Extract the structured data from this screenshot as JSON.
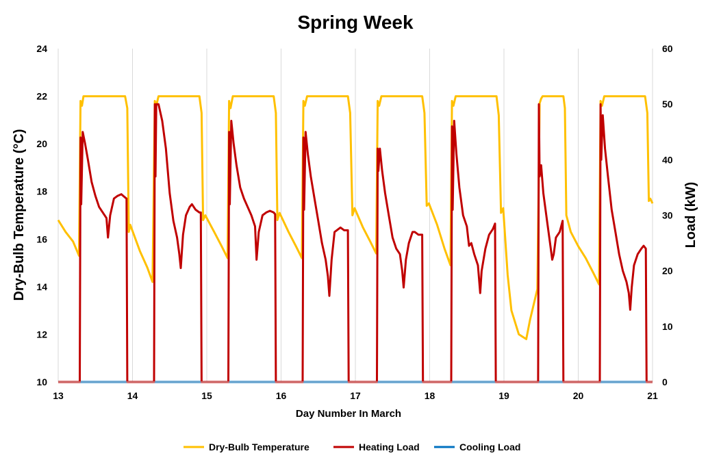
{
  "chart_data": {
    "type": "line",
    "title": "Spring Week",
    "xlabel": "Day Number In March",
    "ylabel_left": "Dry-Bulb Temperature (°C)",
    "ylabel_right": "Load (kW)",
    "xlim": [
      13,
      21
    ],
    "ylim_left": [
      10,
      24
    ],
    "ylim_right": [
      0,
      60
    ],
    "x_ticks": [
      13,
      14,
      15,
      16,
      17,
      18,
      19,
      20,
      21
    ],
    "y_left_ticks": [
      10,
      12,
      14,
      16,
      18,
      20,
      22,
      24
    ],
    "y_right_ticks": [
      0,
      10,
      20,
      30,
      40,
      50,
      60
    ],
    "grid": "vertical",
    "legend_position": "bottom",
    "series": [
      {
        "name": "Dry-Bulb Temperature",
        "axis": "left",
        "color": "#FFC000",
        "points": [
          [
            13.0,
            16.8
          ],
          [
            13.1,
            16.3
          ],
          [
            13.2,
            15.9
          ],
          [
            13.28,
            15.3
          ],
          [
            13.3,
            21.8
          ],
          [
            13.32,
            21.6
          ],
          [
            13.34,
            22.0
          ],
          [
            13.6,
            22.0
          ],
          [
            13.9,
            22.0
          ],
          [
            13.93,
            21.5
          ],
          [
            13.95,
            16.3
          ],
          [
            13.97,
            16.6
          ],
          [
            14.1,
            15.5
          ],
          [
            14.2,
            14.8
          ],
          [
            14.27,
            14.2
          ],
          [
            14.3,
            21.8
          ],
          [
            14.32,
            21.6
          ],
          [
            14.35,
            22.0
          ],
          [
            14.6,
            22.0
          ],
          [
            14.9,
            22.0
          ],
          [
            14.93,
            21.3
          ],
          [
            14.95,
            16.8
          ],
          [
            14.98,
            17.0
          ],
          [
            15.1,
            16.3
          ],
          [
            15.2,
            15.7
          ],
          [
            15.28,
            15.2
          ],
          [
            15.3,
            21.8
          ],
          [
            15.32,
            21.5
          ],
          [
            15.35,
            22.0
          ],
          [
            15.6,
            22.0
          ],
          [
            15.9,
            22.0
          ],
          [
            15.93,
            21.3
          ],
          [
            15.95,
            16.8
          ],
          [
            15.98,
            17.1
          ],
          [
            16.1,
            16.3
          ],
          [
            16.2,
            15.7
          ],
          [
            16.28,
            15.2
          ],
          [
            16.3,
            21.8
          ],
          [
            16.32,
            21.6
          ],
          [
            16.35,
            22.0
          ],
          [
            16.6,
            22.0
          ],
          [
            16.9,
            22.0
          ],
          [
            16.93,
            21.3
          ],
          [
            16.96,
            17.0
          ],
          [
            16.99,
            17.3
          ],
          [
            17.1,
            16.5
          ],
          [
            17.2,
            15.9
          ],
          [
            17.28,
            15.4
          ],
          [
            17.3,
            21.8
          ],
          [
            17.32,
            21.6
          ],
          [
            17.35,
            22.0
          ],
          [
            17.6,
            22.0
          ],
          [
            17.9,
            22.0
          ],
          [
            17.93,
            21.3
          ],
          [
            17.96,
            17.4
          ],
          [
            17.99,
            17.5
          ],
          [
            18.1,
            16.6
          ],
          [
            18.2,
            15.6
          ],
          [
            18.28,
            14.9
          ],
          [
            18.3,
            21.8
          ],
          [
            18.32,
            21.6
          ],
          [
            18.35,
            22.0
          ],
          [
            18.6,
            22.0
          ],
          [
            18.9,
            22.0
          ],
          [
            18.93,
            21.2
          ],
          [
            18.96,
            17.1
          ],
          [
            18.99,
            17.3
          ],
          [
            19.05,
            14.5
          ],
          [
            19.1,
            13.0
          ],
          [
            19.2,
            12.0
          ],
          [
            19.3,
            11.8
          ],
          [
            19.35,
            12.6
          ],
          [
            19.45,
            13.9
          ],
          [
            19.48,
            21.7
          ],
          [
            19.5,
            21.9
          ],
          [
            19.52,
            22.0
          ],
          [
            19.7,
            22.0
          ],
          [
            19.8,
            22.0
          ],
          [
            19.82,
            21.5
          ],
          [
            19.84,
            17.0
          ],
          [
            19.9,
            16.3
          ],
          [
            20.0,
            15.7
          ],
          [
            20.1,
            15.2
          ],
          [
            20.2,
            14.6
          ],
          [
            20.28,
            14.1
          ],
          [
            20.3,
            21.8
          ],
          [
            20.32,
            21.6
          ],
          [
            20.35,
            22.0
          ],
          [
            20.6,
            22.0
          ],
          [
            20.9,
            22.0
          ],
          [
            20.93,
            21.3
          ],
          [
            20.95,
            17.6
          ],
          [
            20.97,
            17.7
          ],
          [
            21.0,
            17.5
          ]
        ]
      },
      {
        "name": "Heating Load",
        "axis": "right",
        "color": "#C00000",
        "points": [
          [
            13.0,
            0
          ],
          [
            13.29,
            0
          ],
          [
            13.3,
            44
          ],
          [
            13.31,
            32
          ],
          [
            13.33,
            45
          ],
          [
            13.36,
            43
          ],
          [
            13.4,
            40
          ],
          [
            13.45,
            36
          ],
          [
            13.5,
            33.5
          ],
          [
            13.55,
            31.5
          ],
          [
            13.6,
            30.5
          ],
          [
            13.65,
            29.5
          ],
          [
            13.67,
            26
          ],
          [
            13.7,
            30
          ],
          [
            13.75,
            33
          ],
          [
            13.8,
            33.5
          ],
          [
            13.85,
            33.8
          ],
          [
            13.9,
            33.2
          ],
          [
            13.92,
            33.0
          ],
          [
            13.93,
            0
          ],
          [
            14.0,
            0
          ],
          [
            14.29,
            0
          ],
          [
            14.3,
            50
          ],
          [
            14.31,
            37
          ],
          [
            14.32,
            50
          ],
          [
            14.35,
            50
          ],
          [
            14.4,
            47
          ],
          [
            14.45,
            42
          ],
          [
            14.5,
            34
          ],
          [
            14.55,
            29
          ],
          [
            14.6,
            26
          ],
          [
            14.63,
            23
          ],
          [
            14.65,
            20.5
          ],
          [
            14.68,
            26.5
          ],
          [
            14.72,
            30
          ],
          [
            14.77,
            31.5
          ],
          [
            14.8,
            32
          ],
          [
            14.85,
            31
          ],
          [
            14.9,
            30.5
          ],
          [
            14.92,
            30.5
          ],
          [
            14.93,
            0
          ],
          [
            15.0,
            0
          ],
          [
            15.29,
            0
          ],
          [
            15.3,
            45
          ],
          [
            15.31,
            32
          ],
          [
            15.33,
            47
          ],
          [
            15.36,
            43
          ],
          [
            15.4,
            39
          ],
          [
            15.45,
            35
          ],
          [
            15.5,
            33
          ],
          [
            15.55,
            31.5
          ],
          [
            15.6,
            30
          ],
          [
            15.65,
            28
          ],
          [
            15.67,
            22
          ],
          [
            15.7,
            27
          ],
          [
            15.75,
            30
          ],
          [
            15.8,
            30.5
          ],
          [
            15.85,
            30.8
          ],
          [
            15.9,
            30.5
          ],
          [
            15.92,
            30.2
          ],
          [
            15.93,
            0
          ],
          [
            16.0,
            0
          ],
          [
            16.29,
            0
          ],
          [
            16.3,
            44
          ],
          [
            16.31,
            31
          ],
          [
            16.33,
            45
          ],
          [
            16.36,
            41
          ],
          [
            16.4,
            37
          ],
          [
            16.45,
            33
          ],
          [
            16.5,
            29
          ],
          [
            16.55,
            25
          ],
          [
            16.6,
            22
          ],
          [
            16.63,
            19
          ],
          [
            16.65,
            15.5
          ],
          [
            16.68,
            22
          ],
          [
            16.72,
            27
          ],
          [
            16.77,
            27.5
          ],
          [
            16.8,
            27.8
          ],
          [
            16.85,
            27.3
          ],
          [
            16.9,
            27.3
          ],
          [
            16.91,
            0
          ],
          [
            17.0,
            0
          ],
          [
            17.29,
            0
          ],
          [
            17.3,
            42
          ],
          [
            17.31,
            38
          ],
          [
            17.33,
            42
          ],
          [
            17.36,
            38
          ],
          [
            17.4,
            34
          ],
          [
            17.45,
            30
          ],
          [
            17.5,
            26
          ],
          [
            17.55,
            24
          ],
          [
            17.6,
            23
          ],
          [
            17.63,
            20
          ],
          [
            17.65,
            17
          ],
          [
            17.68,
            22
          ],
          [
            17.72,
            25
          ],
          [
            17.77,
            27
          ],
          [
            17.8,
            27
          ],
          [
            17.85,
            26.5
          ],
          [
            17.9,
            26.5
          ],
          [
            17.91,
            0
          ],
          [
            18.0,
            0
          ],
          [
            18.29,
            0
          ],
          [
            18.3,
            46
          ],
          [
            18.31,
            31
          ],
          [
            18.33,
            47
          ],
          [
            18.36,
            41
          ],
          [
            18.4,
            35
          ],
          [
            18.45,
            30
          ],
          [
            18.5,
            28
          ],
          [
            18.53,
            24.5
          ],
          [
            18.56,
            25
          ],
          [
            18.6,
            23
          ],
          [
            18.65,
            21
          ],
          [
            18.68,
            16
          ],
          [
            18.7,
            20
          ],
          [
            18.75,
            24
          ],
          [
            18.8,
            26.5
          ],
          [
            18.85,
            27.5
          ],
          [
            18.88,
            28.5
          ],
          [
            18.89,
            0
          ],
          [
            19.0,
            0
          ],
          [
            19.46,
            0
          ],
          [
            19.47,
            50
          ],
          [
            19.48,
            37
          ],
          [
            19.5,
            39
          ],
          [
            19.53,
            34
          ],
          [
            19.58,
            29
          ],
          [
            19.62,
            25
          ],
          [
            19.65,
            22
          ],
          [
            19.67,
            23
          ],
          [
            19.7,
            26
          ],
          [
            19.75,
            27
          ],
          [
            19.79,
            29
          ],
          [
            19.8,
            0
          ],
          [
            20.0,
            0
          ],
          [
            20.29,
            0
          ],
          [
            20.3,
            50
          ],
          [
            20.31,
            40
          ],
          [
            20.33,
            48
          ],
          [
            20.36,
            42
          ],
          [
            20.4,
            37
          ],
          [
            20.45,
            31
          ],
          [
            20.5,
            27
          ],
          [
            20.55,
            23
          ],
          [
            20.6,
            20
          ],
          [
            20.65,
            18
          ],
          [
            20.68,
            16
          ],
          [
            20.7,
            13
          ],
          [
            20.72,
            17
          ],
          [
            20.75,
            21
          ],
          [
            20.8,
            23
          ],
          [
            20.85,
            24
          ],
          [
            20.88,
            24.5
          ],
          [
            20.91,
            24
          ],
          [
            20.92,
            0
          ],
          [
            21.0,
            0
          ]
        ]
      },
      {
        "name": "Cooling Load",
        "axis": "right",
        "color": "#0070C0",
        "points": [
          [
            13.0,
            0
          ],
          [
            21.0,
            0
          ]
        ]
      }
    ]
  }
}
